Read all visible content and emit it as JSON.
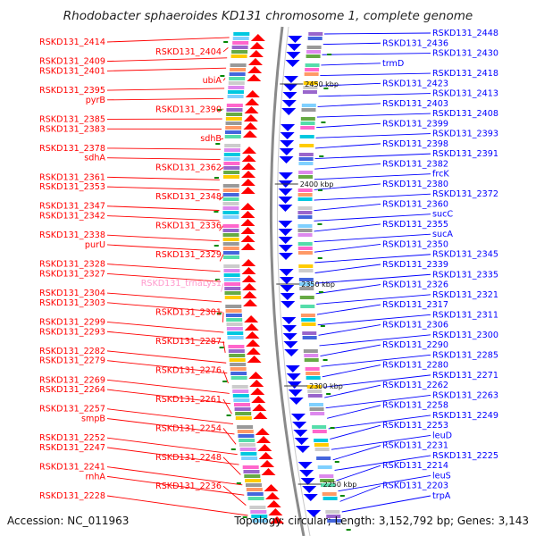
{
  "title": "Rhodobacter sphaeroides KD131 chromosome 1, complete genome",
  "accession": "Accession: NC_011963",
  "topology": "Topology: circular; Length: 3,152,792 bp; Genes: 3,143",
  "colors": {
    "forward_strand": "#ff0000",
    "reverse_strand": "#0000ff",
    "rna": "#ff99cc",
    "backbone": "#888888",
    "kbp_tick": "#008800"
  },
  "kbp_markers": [
    "2450 kbp",
    "2400 kbp",
    "2350 kbp",
    "2300 kbp",
    "2250 kbp"
  ],
  "left_labels": [
    "RSKD131_2414",
    "RSKD131_2404",
    "RSKD131_2409",
    "RSKD131_2401",
    "ubiA",
    "RSKD131_2395",
    "pyrB",
    "RSKD131_2390",
    "RSKD131_2385",
    "RSKD131_2383",
    "sdhB",
    "RSKD131_2378",
    "sdhA",
    "RSKD131_2362",
    "RSKD131_2361",
    "RSKD131_2353",
    "RSKD131_2348",
    "RSKD131_2347",
    "RSKD131_2342",
    "RSKD131_2336",
    "RSKD131_2338",
    "purU",
    "RSKD131_2329",
    "RSKD131_2328",
    "RSKD131_2327",
    "RSKD131_trnaLys1",
    "RSKD131_2304",
    "RSKD131_2303",
    "RSKD131_2301",
    "RSKD131_2299",
    "RSKD131_2293",
    "RSKD131_2287",
    "RSKD131_2282",
    "RSKD131_2279",
    "RSKD131_2276",
    "RSKD131_2269",
    "RSKD131_2264",
    "RSKD131_2261",
    "RSKD131_2257",
    "smpB",
    "RSKD131_2254",
    "RSKD131_2252",
    "RSKD131_2247",
    "RSKD131_2248",
    "RSKD131_2241",
    "rnhA",
    "RSKD131_2236",
    "RSKD131_2228"
  ],
  "right_labels": [
    "RSKD131_2448",
    "RSKD131_2436",
    "RSKD131_2430",
    "trmD",
    "RSKD131_2418",
    "RSKD131_2423",
    "RSKD131_2413",
    "RSKD131_2403",
    "RSKD131_2408",
    "RSKD131_2399",
    "RSKD131_2393",
    "RSKD131_2398",
    "RSKD131_2391",
    "RSKD131_2382",
    "frcK",
    "RSKD131_2380",
    "RSKD131_2372",
    "RSKD131_2360",
    "sucC",
    "RSKD131_2355",
    "sucA",
    "RSKD131_2350",
    "RSKD131_2345",
    "RSKD131_2339",
    "RSKD131_2335",
    "RSKD131_2326",
    "RSKD131_2321",
    "RSKD131_2317",
    "RSKD131_2311",
    "RSKD131_2306",
    "RSKD131_2300",
    "RSKD131_2290",
    "RSKD131_2285",
    "RSKD131_2280",
    "RSKD131_2271",
    "RSKD131_2262",
    "RSKD131_2263",
    "RSKD131_2258",
    "RSKD131_2249",
    "RSKD131_2253",
    "leuD",
    "RSKD131_2231",
    "RSKD131_2225",
    "RSKD131_2214",
    "leuS",
    "RSKD131_2203",
    "trpA"
  ]
}
